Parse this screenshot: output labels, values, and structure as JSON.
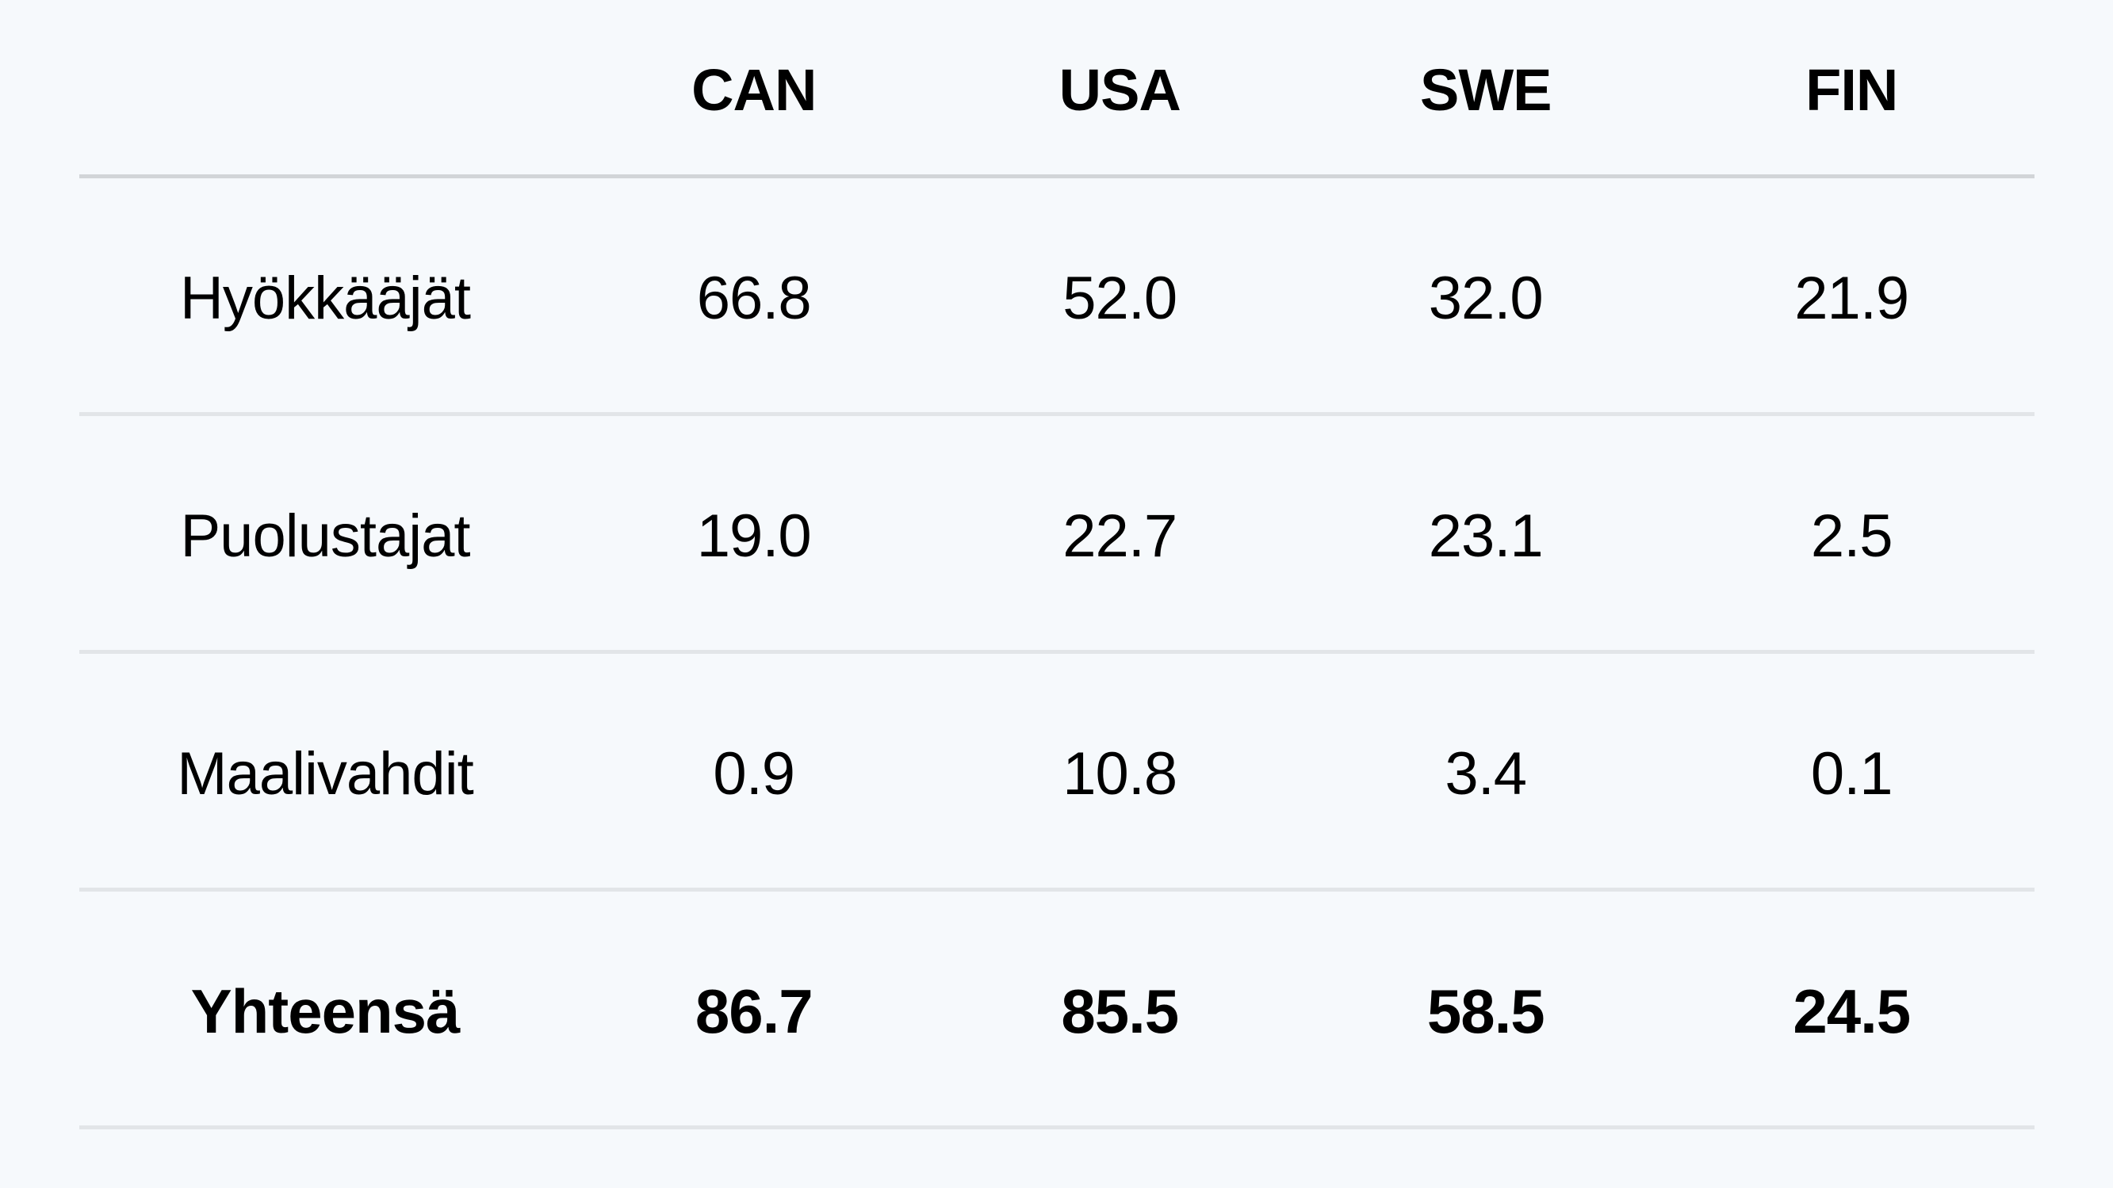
{
  "table": {
    "columns": [
      "",
      "CAN",
      "USA",
      "SWE",
      "FIN"
    ],
    "rows": [
      {
        "label": "Hyökkääjät",
        "values": [
          "66.8",
          "52.0",
          "32.0",
          "21.9"
        ]
      },
      {
        "label": "Puolustajat",
        "values": [
          "19.0",
          "22.7",
          "23.1",
          "2.5"
        ]
      },
      {
        "label": "Maalivahdit",
        "values": [
          "0.9",
          "10.8",
          "3.4",
          "0.1"
        ]
      }
    ],
    "total": {
      "label": "Yhteensä",
      "values": [
        "86.7",
        "85.5",
        "58.5",
        "24.5"
      ]
    }
  },
  "colors": {
    "background": "#f6f9fc",
    "header_rule": "#d2d5d8",
    "row_rule": "#e2e5e8",
    "text": "#000000"
  }
}
